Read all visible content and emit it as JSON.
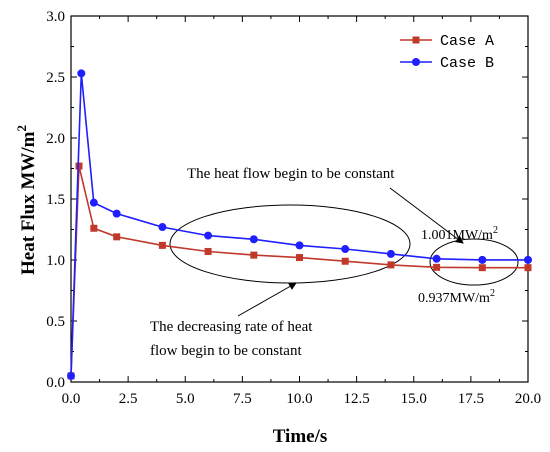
{
  "chart_data": {
    "type": "line",
    "xlabel": "Time/s",
    "ylabel": "Heat Flux  MW/m",
    "ylabel_sup": "2",
    "xlim": [
      0,
      20
    ],
    "ylim": [
      0,
      3
    ],
    "xticks": [
      "0.0",
      "2.5",
      "5.0",
      "7.5",
      "10.0",
      "12.5",
      "15.0",
      "17.5",
      "20.0"
    ],
    "yticks": [
      "0.0",
      "0.5",
      "1.0",
      "1.5",
      "2.0",
      "2.5",
      "3.0"
    ],
    "grid": false,
    "legend_position": "top-right",
    "series": [
      {
        "name": "Case A",
        "color": "#c0392b",
        "marker": "square",
        "x": [
          0,
          0.35,
          1,
          2,
          4,
          6,
          8,
          10,
          12,
          14,
          16,
          18,
          20
        ],
        "y": [
          0.05,
          1.77,
          1.26,
          1.19,
          1.12,
          1.07,
          1.04,
          1.02,
          0.99,
          0.96,
          0.94,
          0.937,
          0.937
        ]
      },
      {
        "name": "Case B",
        "color": "#1f1fff",
        "marker": "circle",
        "x": [
          0,
          0.45,
          1,
          2,
          4,
          6,
          8,
          10,
          12,
          14,
          16,
          18,
          20
        ],
        "y": [
          0.05,
          2.53,
          1.47,
          1.38,
          1.27,
          1.2,
          1.17,
          1.12,
          1.09,
          1.05,
          1.01,
          1.001,
          1.001
        ]
      }
    ],
    "annotations": {
      "constant_flow": "The heat flow begin to be constant",
      "decreasing_rate_line1": "The decreasing rate of heat",
      "decreasing_rate_line2": "flow begin to be constant",
      "value_b": "1.001MW/m",
      "value_a": "0.937MW/m",
      "unit_sup": "2"
    }
  }
}
